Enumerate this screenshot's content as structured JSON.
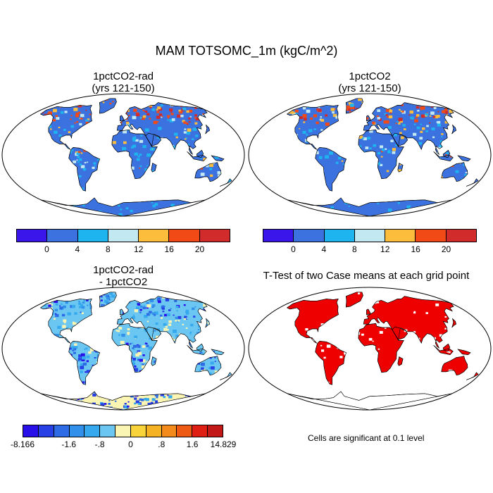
{
  "main_title": "MAM TOTSOMC_1m (kgC/m^2)",
  "panels": [
    {
      "title_line1": "1pctCO2-rad",
      "title_line2": "(yrs 121-150)"
    },
    {
      "title_line1": "1pctCO2",
      "title_line2": "(yrs 121-150)"
    },
    {
      "title_line1": "1pctCO2-rad",
      "title_line2": "- 1pctCO2"
    },
    {
      "title_line1": "T-Test of two Case means at each grid point",
      "title_line2": ""
    }
  ],
  "colorbar_abs": {
    "colors": [
      "#3a16ea",
      "#3c72e0",
      "#1eb4ef",
      "#c2e8f2",
      "#fbbd3b",
      "#f24a17",
      "#d12b2b"
    ],
    "labels": [
      "0",
      "4",
      "8",
      "12",
      "16",
      "20"
    ]
  },
  "colorbar_diff": {
    "colors": [
      "#2a10e8",
      "#2740e6",
      "#2e6ce6",
      "#3191ea",
      "#36a9ee",
      "#6cc6f2",
      "#fbf5b4",
      "#f8d43a",
      "#f5b324",
      "#f28a1c",
      "#ee5a14",
      "#e01f14",
      "#c21818"
    ],
    "labels": [
      "-8.166",
      "-1.6",
      "-.8",
      "0",
      ".8",
      "1.6",
      "14.829"
    ]
  },
  "significance_note": "Cells are significant at 0.1 level",
  "map_colors": {
    "ocean": "#ffffff",
    "land_abs": "#3c72e0",
    "land_diff_base": "#6cc6f2",
    "land_ttest": "#ee0000"
  }
}
